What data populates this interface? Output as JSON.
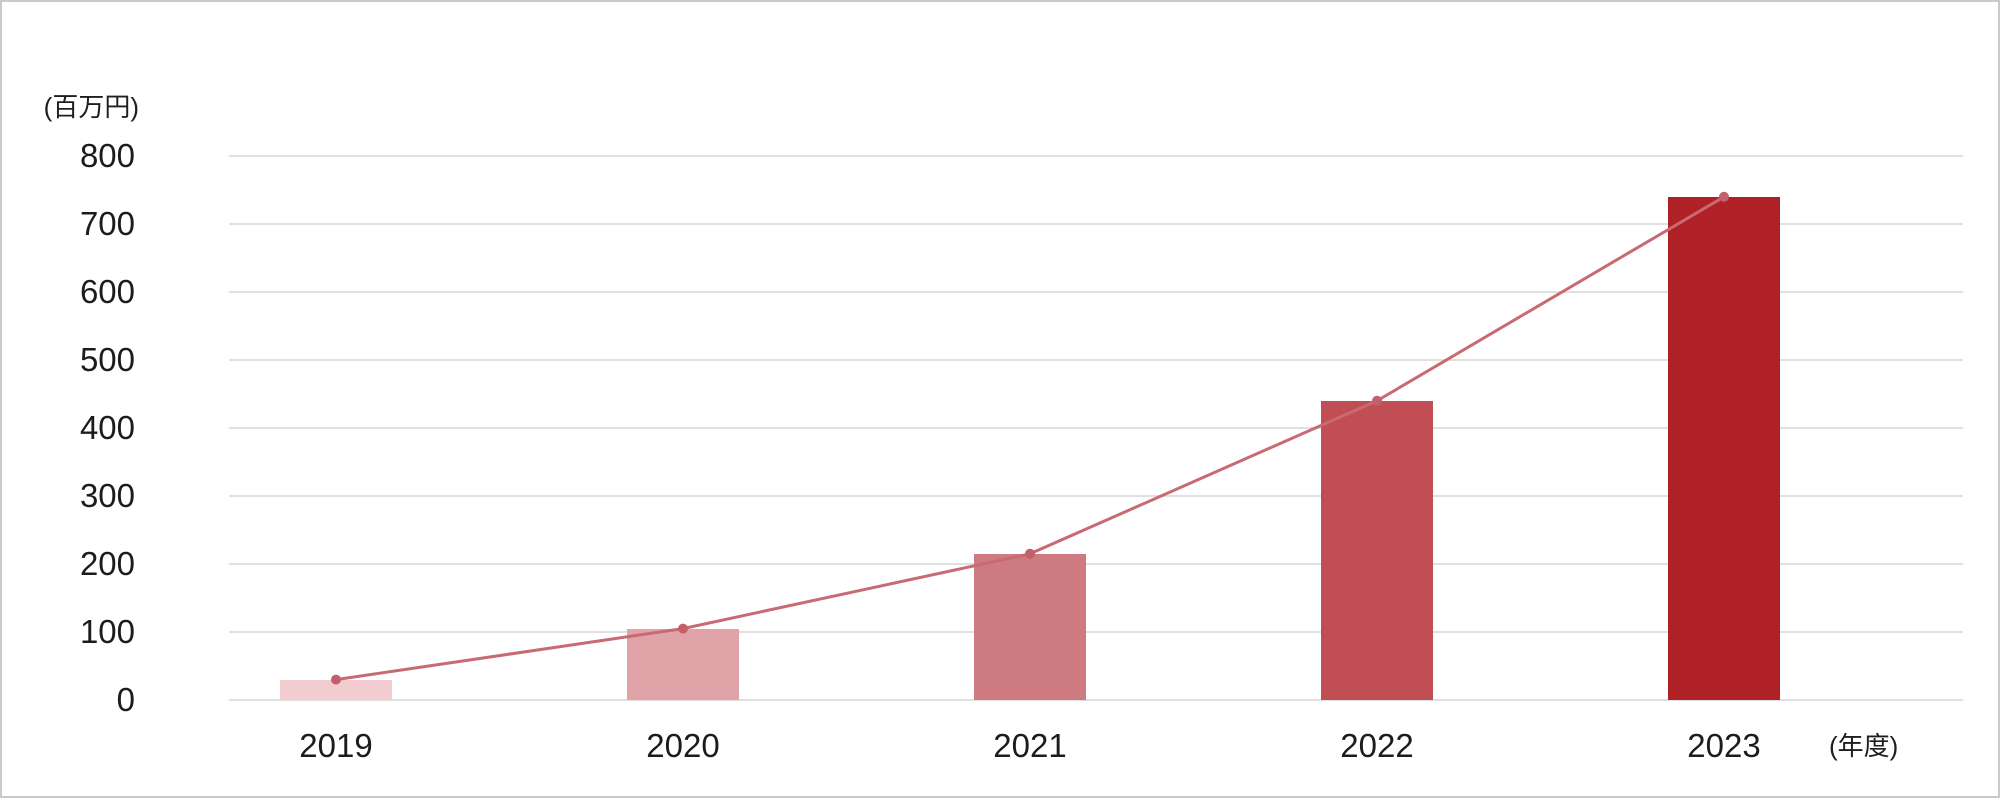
{
  "chart_data": {
    "type": "bar",
    "title": "",
    "y_unit_label": "(百万円)",
    "x_unit_label": "(年度)",
    "categories": [
      "2019",
      "2020",
      "2021",
      "2022",
      "2023"
    ],
    "values": [
      30,
      105,
      215,
      440,
      740
    ],
    "overlay_line": {
      "type": "line",
      "values": [
        30,
        105,
        215,
        440,
        740
      ],
      "color": "#c96a72",
      "dot_color": "#c4606b"
    },
    "ylim": [
      0,
      800
    ],
    "yticks": [
      0,
      100,
      200,
      300,
      400,
      500,
      600,
      700,
      800
    ],
    "grid": true,
    "legend": "none",
    "bar_colors": [
      "#f2ccd1",
      "#dfa3a8",
      "#cd7a80",
      "#c14d55",
      "#b02027"
    ],
    "gridline_color": "#e0e0e0",
    "text_color": "#1c1c1c",
    "frame_border_color": "#c9c9c9"
  }
}
